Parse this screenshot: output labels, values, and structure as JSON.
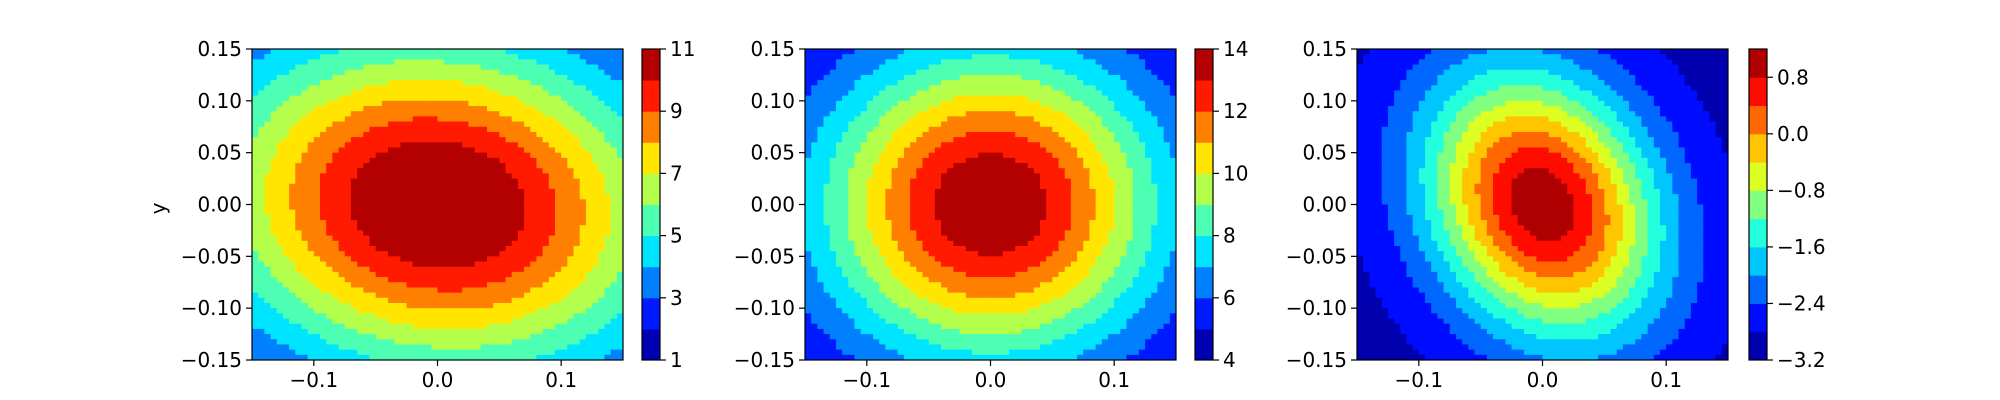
{
  "chart_data": [
    {
      "type": "contour",
      "colormap": "jet",
      "ylabel": "y",
      "xlim": [
        -0.15,
        0.15
      ],
      "ylim": [
        -0.15,
        0.15
      ],
      "xticks": [
        "−0.1",
        "0.0",
        "0.1"
      ],
      "yticks": [
        "0.15",
        "0.10",
        "0.05",
        "0.00",
        "−0.05",
        "−0.10",
        "−0.15"
      ],
      "field": {
        "center": [
          0.0,
          0.0
        ],
        "min": 1.0,
        "max": 11.4,
        "width_x": 0.19,
        "width_y": 0.16,
        "tilt": 0.25
      },
      "colorbar": {
        "min": 1,
        "max": 11,
        "levels": 10,
        "ticks": [
          "11",
          "9",
          "7",
          "5",
          "3",
          "1"
        ]
      }
    },
    {
      "type": "contour",
      "colormap": "jet",
      "xlim": [
        -0.15,
        0.15
      ],
      "ylim": [
        -0.15,
        0.15
      ],
      "xticks": [
        "−0.1",
        "0.0",
        "0.1"
      ],
      "yticks": [
        "0.15",
        "0.10",
        "0.05",
        "0.00",
        "−0.05",
        "−0.10",
        "−0.15"
      ],
      "field": {
        "center": [
          0.0,
          0.0
        ],
        "min": 4.0,
        "max": 14.0,
        "width_x": 0.14,
        "width_y": 0.15,
        "tilt": 0.0
      },
      "colorbar": {
        "min": 4,
        "max": 14,
        "levels": 10,
        "ticks": [
          "14",
          "12",
          "10",
          "8",
          "6",
          "4"
        ]
      }
    },
    {
      "type": "contour",
      "colormap": "jet",
      "xlim": [
        -0.15,
        0.15
      ],
      "ylim": [
        -0.15,
        0.15
      ],
      "xticks": [
        "−0.1",
        "0.0",
        "0.1"
      ],
      "yticks": [
        "0.15",
        "0.10",
        "0.05",
        "0.00",
        "−0.05",
        "−0.10",
        "−0.15"
      ],
      "field": {
        "center": [
          0.0,
          0.0
        ],
        "min": -3.0,
        "max": 1.1,
        "width_x": 0.09,
        "width_y": 0.13,
        "tilt": -0.3
      },
      "colorbar": {
        "min": -3.2,
        "max": 1.2,
        "levels": 11,
        "ticks": [
          "0.8",
          "0.0",
          "−0.8",
          "−1.6",
          "−2.4",
          "−3.2"
        ]
      }
    }
  ]
}
